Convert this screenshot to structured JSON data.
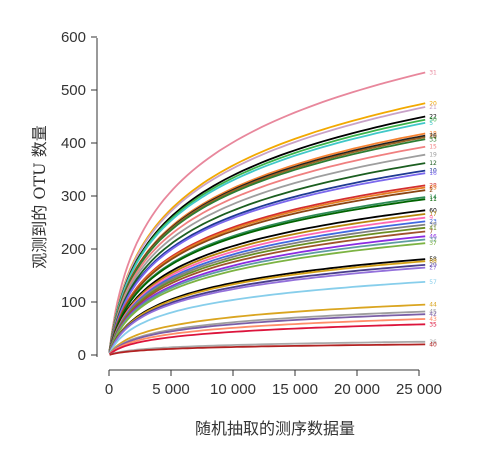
{
  "chart_data": {
    "type": "line",
    "title": "",
    "xlabel": "随机抽取的测序数据量",
    "ylabel": "观测到的 OTU 数量",
    "xlim": [
      -500,
      27000
    ],
    "ylim": [
      -10,
      600
    ],
    "x_ticks": [
      0,
      5000,
      10000,
      15000,
      20000,
      25000
    ],
    "x_tick_labels": [
      "0",
      "5 000",
      "10 000",
      "15 000",
      "20 000",
      "25 000"
    ],
    "y_ticks": [
      0,
      100,
      200,
      300,
      400,
      500,
      600
    ],
    "y_tick_labels": [
      "0",
      "100",
      "200",
      "300",
      "400",
      "500",
      "600"
    ],
    "x_start": 50,
    "x_end": 25500,
    "grid": false,
    "legend": "none",
    "series": [
      {
        "name": "31",
        "final": 533,
        "color": "#e8879c"
      },
      {
        "name": "20",
        "final": 475,
        "color": "#f2a900"
      },
      {
        "name": "21",
        "final": 468,
        "color": "#c8a2c8"
      },
      {
        "name": "22",
        "final": 450,
        "color": "#000000"
      },
      {
        "name": "50",
        "final": 444,
        "color": "#3cb44b"
      },
      {
        "name": "5",
        "final": 438,
        "color": "#40c8c8"
      },
      {
        "name": "18",
        "final": 418,
        "color": "#f58231"
      },
      {
        "name": "26",
        "final": 414,
        "color": "#222222"
      },
      {
        "name": "34",
        "final": 411,
        "color": "#9a6324"
      },
      {
        "name": "33",
        "final": 407,
        "color": "#2e7d32"
      },
      {
        "name": "15",
        "final": 393,
        "color": "#f08080"
      },
      {
        "name": "19",
        "final": 378,
        "color": "#9e9e9e"
      },
      {
        "name": "12",
        "final": 362,
        "color": "#1b5e20"
      },
      {
        "name": "10",
        "final": 348,
        "color": "#1f3a93"
      },
      {
        "name": "16",
        "final": 343,
        "color": "#7b68ee"
      },
      {
        "name": "28",
        "final": 320,
        "color": "#d32f2f"
      },
      {
        "name": "25",
        "final": 316,
        "color": "#e67e22"
      },
      {
        "name": "2",
        "final": 311,
        "color": "#8b4513"
      },
      {
        "name": "14",
        "final": 298,
        "color": "#2e8b57"
      },
      {
        "name": "11",
        "final": 294,
        "color": "#006400"
      },
      {
        "name": "60",
        "final": 273,
        "color": "#000000"
      },
      {
        "name": "17",
        "final": 266,
        "color": "#b8860b"
      },
      {
        "name": "9",
        "final": 259,
        "color": "#ff69b4"
      },
      {
        "name": "23",
        "final": 252,
        "color": "#4169e1"
      },
      {
        "name": "39",
        "final": 246,
        "color": "#808080"
      },
      {
        "name": "41",
        "final": 240,
        "color": "#6b8e23"
      },
      {
        "name": "7",
        "final": 233,
        "color": "#a0522d"
      },
      {
        "name": "46",
        "final": 224,
        "color": "#8a2be2"
      },
      {
        "name": "32",
        "final": 218,
        "color": "#5f9ea0"
      },
      {
        "name": "37",
        "final": 211,
        "color": "#7cb342"
      },
      {
        "name": "58",
        "final": 181,
        "color": "#000000"
      },
      {
        "name": "68",
        "final": 177,
        "color": "#d4a017"
      },
      {
        "name": "29",
        "final": 170,
        "color": "#483d8b"
      },
      {
        "name": "27",
        "final": 165,
        "color": "#9370db"
      },
      {
        "name": "57",
        "final": 138,
        "color": "#87ceeb"
      },
      {
        "name": "44",
        "final": 95,
        "color": "#daa520"
      },
      {
        "name": "45",
        "final": 82,
        "color": "#9e9e9e"
      },
      {
        "name": "42",
        "final": 77,
        "color": "#7b5ea7"
      },
      {
        "name": "43",
        "final": 68,
        "color": "#ff8c69"
      },
      {
        "name": "35",
        "final": 58,
        "color": "#dc143c"
      },
      {
        "name": "36",
        "final": 25,
        "color": "#a9a9a9"
      },
      {
        "name": "40",
        "final": 20,
        "color": "#b22222"
      }
    ]
  }
}
